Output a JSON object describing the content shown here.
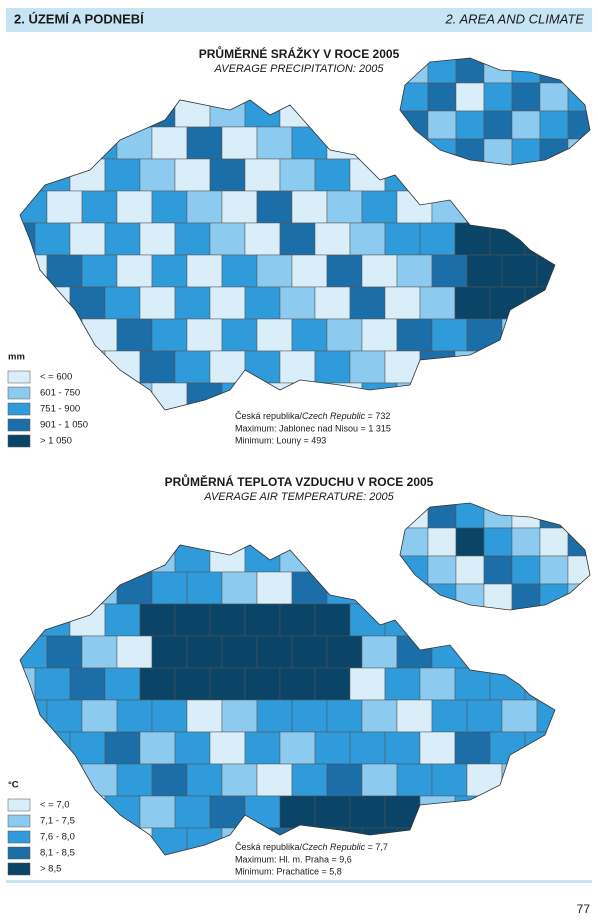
{
  "header": {
    "left": "2. ÚZEMÍ A PODNEBÍ",
    "right": "2. AREA AND CLIMATE"
  },
  "maps": [
    {
      "title": "PRŮMĚRNÉ SRÁŽKY V ROCE 2005",
      "subtitle": "AVERAGE PRECIPITATION: 2005",
      "unit": "mm",
      "legend": [
        {
          "label": "< = 600",
          "color": "#d9eef9"
        },
        {
          "label": "601 - 750",
          "color": "#8ccbef"
        },
        {
          "label": "751 - 900",
          "color": "#2f9bdb"
        },
        {
          "label": "901 - 1 050",
          "color": "#1c6ea8"
        },
        {
          "label": "> 1 050",
          "color": "#0a4568"
        }
      ],
      "notes": {
        "prefix": "Česká republika/",
        "italic": "Czech Republic",
        "suffix": " = 732",
        "max": "Maximum: Jablonec nad Nisou = 1 315",
        "min": "Minimum: Louny = 493"
      }
    },
    {
      "title": "PRŮMĚRNÁ TEPLOTA VZDUCHU V ROCE 2005",
      "subtitle": "AVERAGE AIR TEMPERATURE: 2005",
      "unit": "°C",
      "legend": [
        {
          "label": "< = 7,0",
          "color": "#d9eef9"
        },
        {
          "label": "7,1 - 7,5",
          "color": "#8ccbef"
        },
        {
          "label": "7,6 - 8,0",
          "color": "#2f9bdb"
        },
        {
          "label": "8,1 - 8,5",
          "color": "#1c6ea8"
        },
        {
          "label": "> 8,5",
          "color": "#0a4568"
        }
      ],
      "notes": {
        "prefix": "Česká republika/",
        "italic": "Czech Republic",
        "suffix": " = 7,7",
        "max": "Maximum: Hl. m. Praha = 9,6",
        "min": "Minimum: Prachatice = 5,8"
      }
    }
  ],
  "page_number": "77"
}
